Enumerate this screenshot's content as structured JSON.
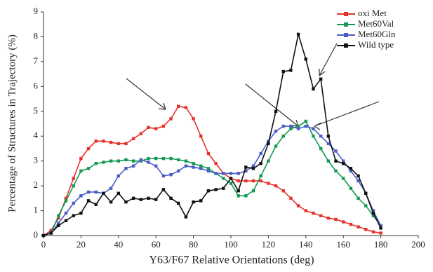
{
  "chart_data": {
    "type": "line",
    "x_label": "Y63/F67 Relative Orientations (deg)",
    "y_label": "Percentage of Structures in Trajectory (%)",
    "x": [
      0,
      4,
      8,
      12,
      16,
      20,
      24,
      28,
      32,
      36,
      40,
      44,
      48,
      52,
      56,
      60,
      64,
      68,
      72,
      76,
      80,
      84,
      88,
      92,
      96,
      100,
      104,
      108,
      112,
      116,
      120,
      124,
      128,
      132,
      136,
      140,
      144,
      148,
      152,
      156,
      160,
      164,
      168,
      172,
      176,
      180
    ],
    "series": [
      {
        "name": "oxi Met",
        "color": "#e8312b",
        "values": [
          0,
          0.2,
          0.7,
          1.5,
          2.3,
          3.1,
          3.5,
          3.8,
          3.8,
          3.75,
          3.7,
          3.7,
          3.9,
          4.1,
          4.35,
          4.3,
          4.4,
          4.7,
          5.2,
          5.15,
          4.7,
          4.0,
          3.3,
          2.9,
          2.5,
          2.3,
          2.2,
          2.2,
          2.2,
          2.2,
          2.1,
          2.0,
          1.8,
          1.5,
          1.2,
          1.0,
          0.9,
          0.8,
          0.7,
          0.65,
          0.55,
          0.45,
          0.35,
          0.25,
          0.15,
          0.1
        ]
      },
      {
        "name": "Met60Val",
        "color": "#149a52",
        "values": [
          0,
          0.1,
          0.8,
          1.4,
          2.0,
          2.6,
          2.7,
          2.9,
          2.95,
          3.0,
          3.0,
          3.05,
          3.0,
          3.0,
          3.1,
          3.1,
          3.1,
          3.1,
          3.05,
          3.0,
          2.9,
          2.8,
          2.7,
          2.5,
          2.3,
          2.1,
          1.6,
          1.6,
          1.8,
          2.4,
          3.0,
          3.6,
          4.0,
          4.3,
          4.4,
          4.6,
          4.0,
          3.5,
          3.0,
          2.6,
          2.3,
          1.9,
          1.5,
          1.2,
          0.8,
          0.4
        ]
      },
      {
        "name": "Met60Gln",
        "color": "#4a5cc6",
        "values": [
          0,
          0.1,
          0.5,
          0.9,
          1.3,
          1.6,
          1.75,
          1.75,
          1.7,
          1.9,
          2.4,
          2.7,
          2.8,
          3.05,
          2.95,
          2.8,
          2.4,
          2.45,
          2.6,
          2.8,
          2.75,
          2.7,
          2.6,
          2.5,
          2.5,
          2.5,
          2.5,
          2.6,
          2.8,
          3.3,
          3.8,
          4.2,
          4.4,
          4.4,
          4.3,
          4.4,
          4.3,
          4.0,
          3.7,
          3.4,
          3.0,
          2.6,
          2.2,
          1.7,
          1.0,
          0.4
        ]
      },
      {
        "name": "Wild type",
        "color": "#111111",
        "values": [
          0,
          0.1,
          0.4,
          0.6,
          0.8,
          0.9,
          1.4,
          1.25,
          1.7,
          1.35,
          1.7,
          1.35,
          1.5,
          1.45,
          1.5,
          1.45,
          1.85,
          1.5,
          1.3,
          0.75,
          1.35,
          1.4,
          1.8,
          1.85,
          1.9,
          2.3,
          1.8,
          2.75,
          2.7,
          2.9,
          3.7,
          5.0,
          6.6,
          6.65,
          8.1,
          7.1,
          5.9,
          6.3,
          4.0,
          3.0,
          2.9,
          2.7,
          2.4,
          1.7,
          0.9,
          0.3
        ]
      }
    ],
    "xlim": [
      0,
      200
    ],
    "xticks": [
      0,
      20,
      40,
      60,
      80,
      100,
      120,
      140,
      160,
      180,
      200
    ],
    "ylim": [
      0,
      9
    ],
    "yticks": [
      0,
      1,
      2,
      3,
      4,
      5,
      6,
      7,
      8,
      9
    ],
    "legend": "upper right"
  }
}
